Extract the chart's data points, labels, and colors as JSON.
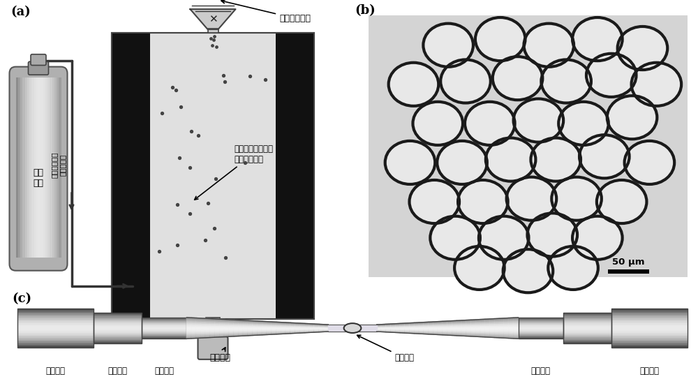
{
  "panel_a_label": "(a)",
  "panel_b_label": "(b)",
  "panel_c_label": "(c)",
  "label_inert_gas": "惰性\n气体",
  "label_pour_powder": "倒入玻璃粉末",
  "label_surface_tension": "由于表面张力作用\n粉末形成微球",
  "label_tube_label": "充入惰性气体\n和玻璃粉末",
  "label_collector": "收集装置",
  "label_scale": "50 μm",
  "label_smf": "单模光纤",
  "label_mmf": "多模光纤",
  "label_hcf": "中空光纤",
  "label_microsphere": "玻璃微球",
  "label_mmf2": "多模光纤",
  "label_smf2": "单模光纤",
  "bg_color": "#ffffff",
  "furnace_light_bg": "#e0e0e0",
  "furnace_black": "#111111",
  "cylinder_color": "#b0b0b0",
  "sphere_bg": "#d0d0d0"
}
